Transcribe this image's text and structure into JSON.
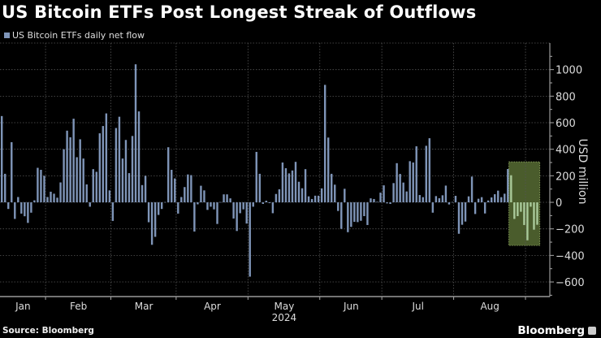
{
  "chart_data": {
    "type": "bar",
    "title": "US Bitcoin ETFs Post Longest Streak of Outflows",
    "ylabel": "USD million",
    "xlabel": "",
    "year_label": "2024",
    "ylim": [
      -710,
      1200
    ],
    "yticks": [
      -600,
      -400,
      -200,
      0,
      200,
      400,
      600,
      800,
      1000
    ],
    "grid": true,
    "y_axis_side": "right",
    "legend": {
      "position": "top-left",
      "entries": [
        "US Bitcoin ETFs daily net flow"
      ]
    },
    "series": [
      {
        "name": "US Bitcoin ETFs daily net flow",
        "color": "#7f95b8"
      }
    ],
    "months": [
      {
        "label": "Jan",
        "values": [
          650,
          215,
          -50,
          453,
          -125,
          40,
          -85,
          -105,
          -155,
          -78,
          15,
          260,
          245,
          200
        ]
      },
      {
        "label": "Feb",
        "values": [
          40,
          80,
          65,
          35,
          150,
          400,
          540,
          490,
          630,
          340,
          475,
          330,
          135,
          -33,
          250,
          230,
          520,
          575,
          670,
          90
        ]
      },
      {
        "label": "Mar",
        "values": [
          -140,
          560,
          645,
          330,
          470,
          220,
          500,
          1040,
          685,
          130,
          200,
          -150,
          -320,
          -260,
          -95,
          -50,
          2,
          415,
          245,
          180
        ]
      },
      {
        "label": "Apr",
        "values": [
          -85,
          40,
          115,
          210,
          205,
          -220,
          -15,
          125,
          90,
          -57,
          -33,
          -53,
          -163,
          2,
          60,
          60,
          30,
          -122,
          -216,
          -82,
          -53,
          -160
        ]
      },
      {
        "label": "May",
        "values": [
          -560,
          -33,
          380,
          215,
          -12,
          12,
          -6,
          -82,
          63,
          98,
          300,
          257,
          218,
          240,
          305,
          155,
          106,
          250,
          45,
          25,
          50,
          50
        ]
      },
      {
        "label": "Jun",
        "values": [
          105,
          885,
          488,
          215,
          133,
          -65,
          -200,
          102,
          -225,
          -185,
          -147,
          -149,
          -139,
          -104,
          -171,
          30,
          25,
          4,
          73
        ]
      },
      {
        "label": "Jul",
        "values": [
          128,
          -8,
          -12,
          145,
          295,
          214,
          149,
          82,
          310,
          300,
          422,
          55,
          39,
          426,
          483,
          -78,
          47,
          31,
          53,
          126,
          -16,
          2
        ]
      },
      {
        "label": "Aug",
        "values": [
          49,
          -237,
          -169,
          -145,
          45,
          194,
          -88,
          27,
          39,
          -84,
          14,
          37,
          61,
          88,
          39,
          65,
          251,
          204,
          -125,
          -104,
          -71,
          -171
        ]
      },
      {
        "label": "",
        "values": [
          -286,
          -33,
          -206,
          -169
        ]
      }
    ],
    "highlight": {
      "last_n_bars": 9,
      "ylim": [
        -325,
        305
      ],
      "fill": "#4a5c2c",
      "bar_color": "#a9c99a"
    }
  },
  "source": "Source: Bloomberg",
  "brand": "Bloomberg"
}
